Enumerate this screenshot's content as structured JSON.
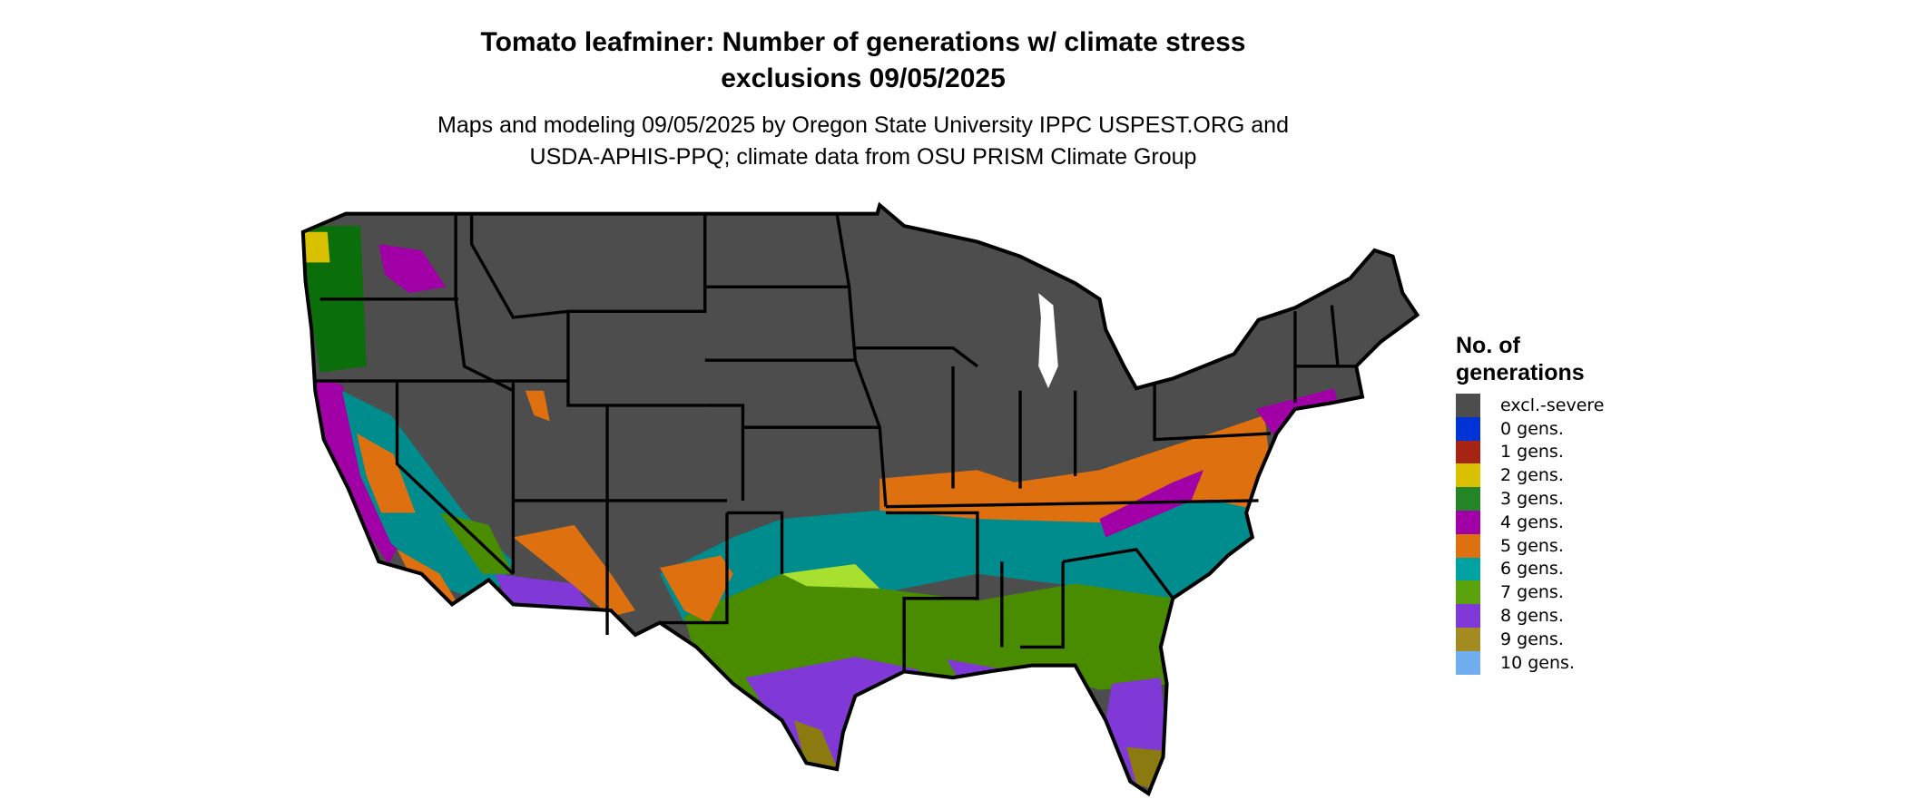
{
  "title": {
    "line1": "Tomato leafminer: Number of generations w/ climate stress",
    "line2": "exclusions 09/05/2025"
  },
  "subtitle": {
    "line1": "Maps and modeling 09/05/2025 by Oregon State University IPPC USPEST.ORG and",
    "line2": "USDA-APHIS-PPQ; climate data from OSU PRISM Climate Group"
  },
  "legend": {
    "title_line1": "No. of",
    "title_line2": "generations",
    "items": [
      {
        "label": "excl.-severe",
        "color": "#4d4d4d"
      },
      {
        "label": "0 gens.",
        "color": "#0033d6"
      },
      {
        "label": "1 gens.",
        "color": "#a62414"
      },
      {
        "label": "2 gens.",
        "color": "#d9c000"
      },
      {
        "label": "3 gens.",
        "color": "#248526"
      },
      {
        "label": "4 gens.",
        "color": "#a000a6"
      },
      {
        "label": "5 gens.",
        "color": "#de7010"
      },
      {
        "label": "6 gens.",
        "color": "#00a3a3"
      },
      {
        "label": "7 gens.",
        "color": "#5aa30d"
      },
      {
        "label": "8 gens.",
        "color": "#8038d6"
      },
      {
        "label": "9 gens.",
        "color": "#a38a21"
      },
      {
        "label": "10 gens.",
        "color": "#70aef0"
      }
    ]
  },
  "map": {
    "region": "Contiguous United States",
    "border_color": "#000000",
    "excluded_color": "#4d4d4d"
  }
}
